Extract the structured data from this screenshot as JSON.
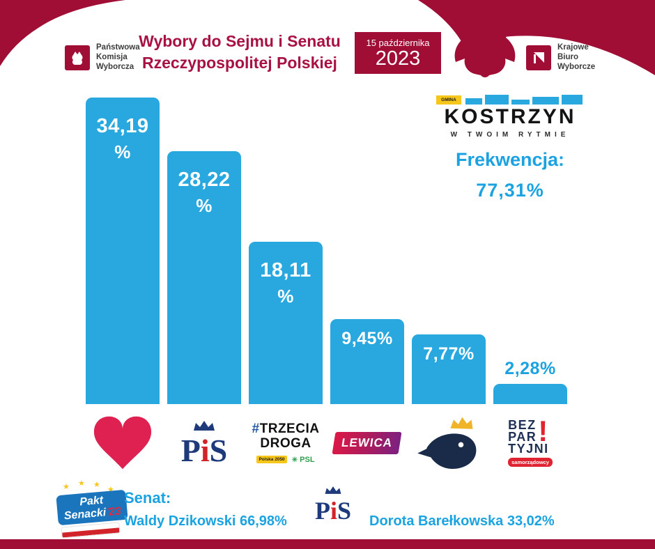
{
  "colors": {
    "crimson": "#a00d35",
    "title_crimson": "#a81243",
    "bar_blue": "#29a8e0",
    "text_blue": "#1ba3e1",
    "pis_navy": "#1e3a7a",
    "pis_red": "#d2232a",
    "heart_red": "#de2150",
    "lewica_gradient": [
      "#dd1846",
      "#7a2182"
    ],
    "konfederacja_navy": "#1a2b4a",
    "crown_gold": "#f0b429",
    "bezpartyjni_red": "#e02330",
    "pakt_blue": "#1b75bc",
    "gold_yellow": "#f7c61a"
  },
  "header": {
    "pkw_logo": {
      "line1": "Państwowa",
      "line2": "Komisja",
      "line3": "Wyborcza"
    },
    "title_line1": "Wybory do Sejmu i Senatu",
    "title_line2": "Rzeczypospolitej Polskiej",
    "date_line1": "15 października",
    "date_year": "2023",
    "kbw_logo": {
      "line1": "Krajowe",
      "line2": "Biuro",
      "line3": "Wyborcze"
    }
  },
  "kostrzyn": {
    "badge": "GMINA",
    "name": "KOSTRZYN",
    "tagline": "W TWOIM RYTMIE"
  },
  "frekwencja": {
    "label": "Frekwencja:",
    "value": "77,31%"
  },
  "chart_data": {
    "type": "bar",
    "categories": [
      "Koalicja Obywatelska",
      "Prawo i Sprawiedliwość",
      "Trzecia Droga",
      "Lewica",
      "Konfederacja",
      "Bezpartyjni Samorządowcy"
    ],
    "values": [
      34.19,
      28.22,
      18.11,
      9.45,
      7.77,
      2.28
    ],
    "label_lines": [
      [
        "34,19",
        "%"
      ],
      [
        "28,22",
        "%"
      ],
      [
        "18,11",
        "%"
      ],
      [
        "9,45%"
      ],
      [
        "7,77%"
      ],
      [
        "2,28%"
      ]
    ],
    "ylim": [
      0,
      34.19
    ],
    "grid": false,
    "legend": false,
    "bar_color": "#29a8e0"
  },
  "logos": {
    "pis": {
      "p": "P",
      "i": "i",
      "s": "S"
    },
    "trzecia_droga": {
      "hash": "#",
      "line1": "TRZECIA",
      "line2": "DROGA",
      "sub_left": "Polska 2050",
      "sub_right": "PSL"
    },
    "lewica": {
      "text": "LEWICA"
    },
    "bezpartyjni": {
      "line1": "BEZ",
      "line2": "PAR",
      "line3": "TYJNI",
      "exclaim": "!",
      "sub": "samorządowcy"
    }
  },
  "senat": {
    "pakt_logo": {
      "line1": "Pakt",
      "line2": "Senacki",
      "year": "'23"
    },
    "label": "Senat:",
    "candidate1": "Waldy Dzikowski 66,98%",
    "candidate2": "Dorota Barełkowska 33,02%"
  }
}
